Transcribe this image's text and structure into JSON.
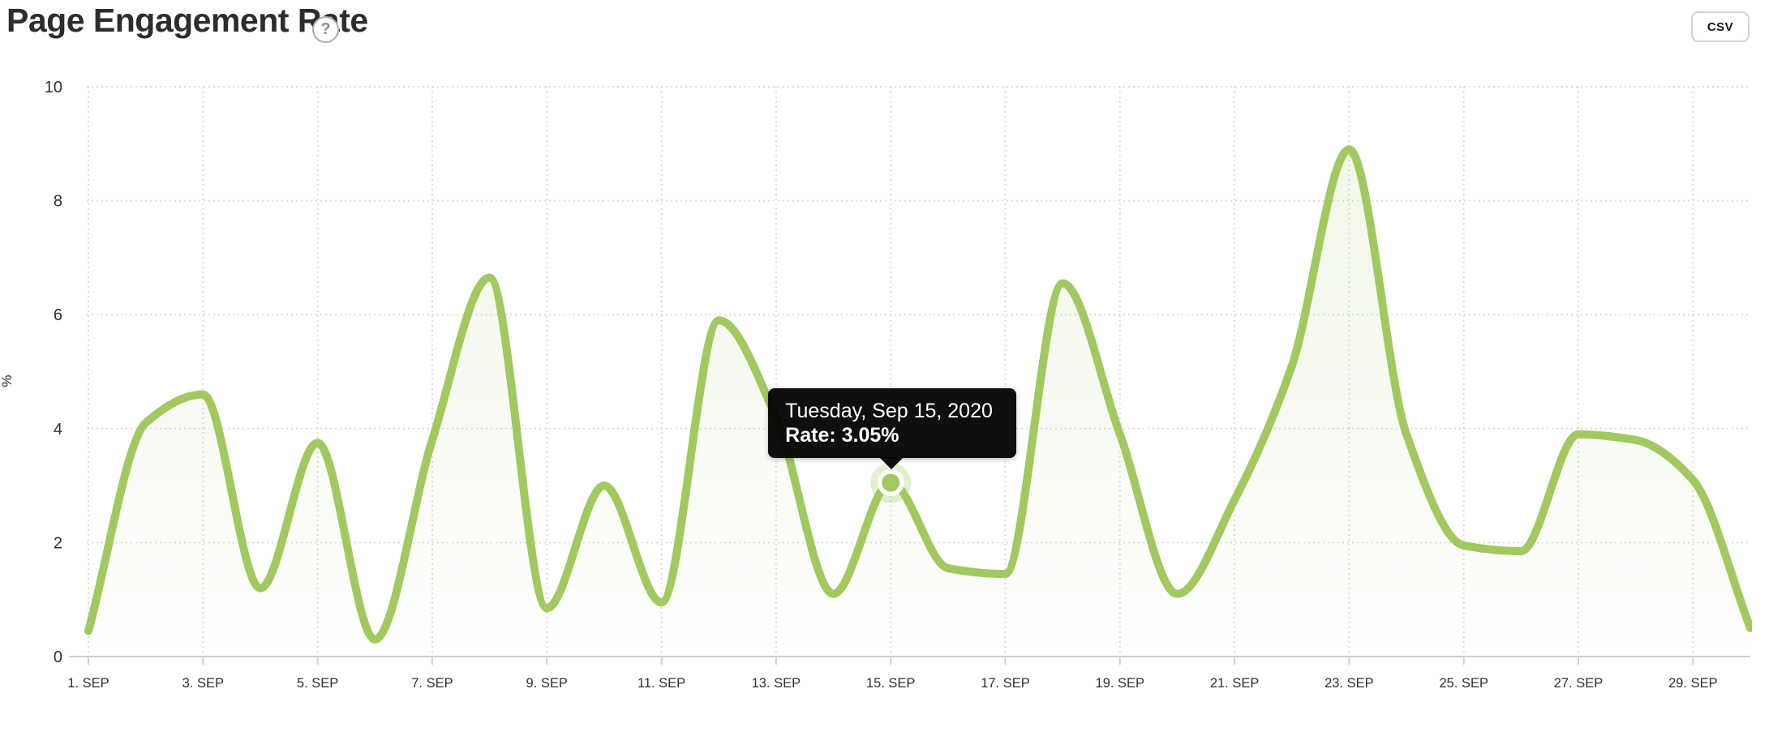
{
  "header": {
    "title": "Page Engagement Rate",
    "help_icon_glyph": "?",
    "csv_button_label": "CSV"
  },
  "tooltip": {
    "date_line": "Tuesday, Sep 15, 2020",
    "rate_line": "Rate: 3.05%"
  },
  "axes": {
    "y_axis_title": "%",
    "y_tick_labels": [
      "0",
      "2",
      "4",
      "6",
      "8",
      "10"
    ],
    "x_tick_labels": [
      "1. SEP",
      "3. SEP",
      "5. SEP",
      "7. SEP",
      "9. SEP",
      "11. SEP",
      "13. SEP",
      "15. SEP",
      "17. SEP",
      "19. SEP",
      "21. SEP",
      "23. SEP",
      "25. SEP",
      "27. SEP",
      "29. SEP"
    ]
  },
  "colors": {
    "line": "#a1c95f",
    "area_top": "rgba(161,201,95,0.16)",
    "area_bottom": "rgba(161,201,95,0.01)",
    "grid": "#dcdcdc",
    "axis_line": "#cfcfcf",
    "tick_text": "#303030",
    "tooltip_bg": "#000000",
    "marker_halo": "rgba(161,201,95,0.30)"
  },
  "chart_data": {
    "type": "area",
    "title": "Page Engagement Rate",
    "x_unit": "September 2020, daily",
    "x": [
      1,
      2,
      3,
      4,
      5,
      6,
      7,
      8,
      9,
      10,
      11,
      12,
      13,
      14,
      15,
      16,
      17,
      18,
      19,
      20,
      21,
      22,
      23,
      24,
      25,
      26,
      27,
      28,
      29,
      30
    ],
    "values": [
      0.45,
      4.1,
      4.6,
      1.2,
      3.75,
      0.3,
      3.8,
      6.65,
      0.85,
      3.0,
      0.95,
      5.9,
      4.2,
      1.1,
      3.05,
      1.55,
      1.45,
      6.55,
      3.9,
      1.1,
      2.75,
      5.1,
      8.9,
      3.9,
      1.95,
      1.85,
      3.9,
      3.8,
      3.1,
      0.5
    ],
    "ylabel": "%",
    "ylim": [
      0,
      10
    ],
    "y_ticks": [
      0,
      2,
      4,
      6,
      8,
      10
    ],
    "x_ticks_at_days": [
      1,
      3,
      5,
      7,
      9,
      11,
      13,
      15,
      17,
      19,
      21,
      23,
      25,
      27,
      29
    ],
    "grid": "dotted",
    "legend": "none",
    "smoothing": "spline",
    "highlighted_point": {
      "day": 15,
      "value": 3.05,
      "tooltip_date": "Tuesday, Sep 15, 2020",
      "tooltip_rate": "3.05%"
    }
  }
}
